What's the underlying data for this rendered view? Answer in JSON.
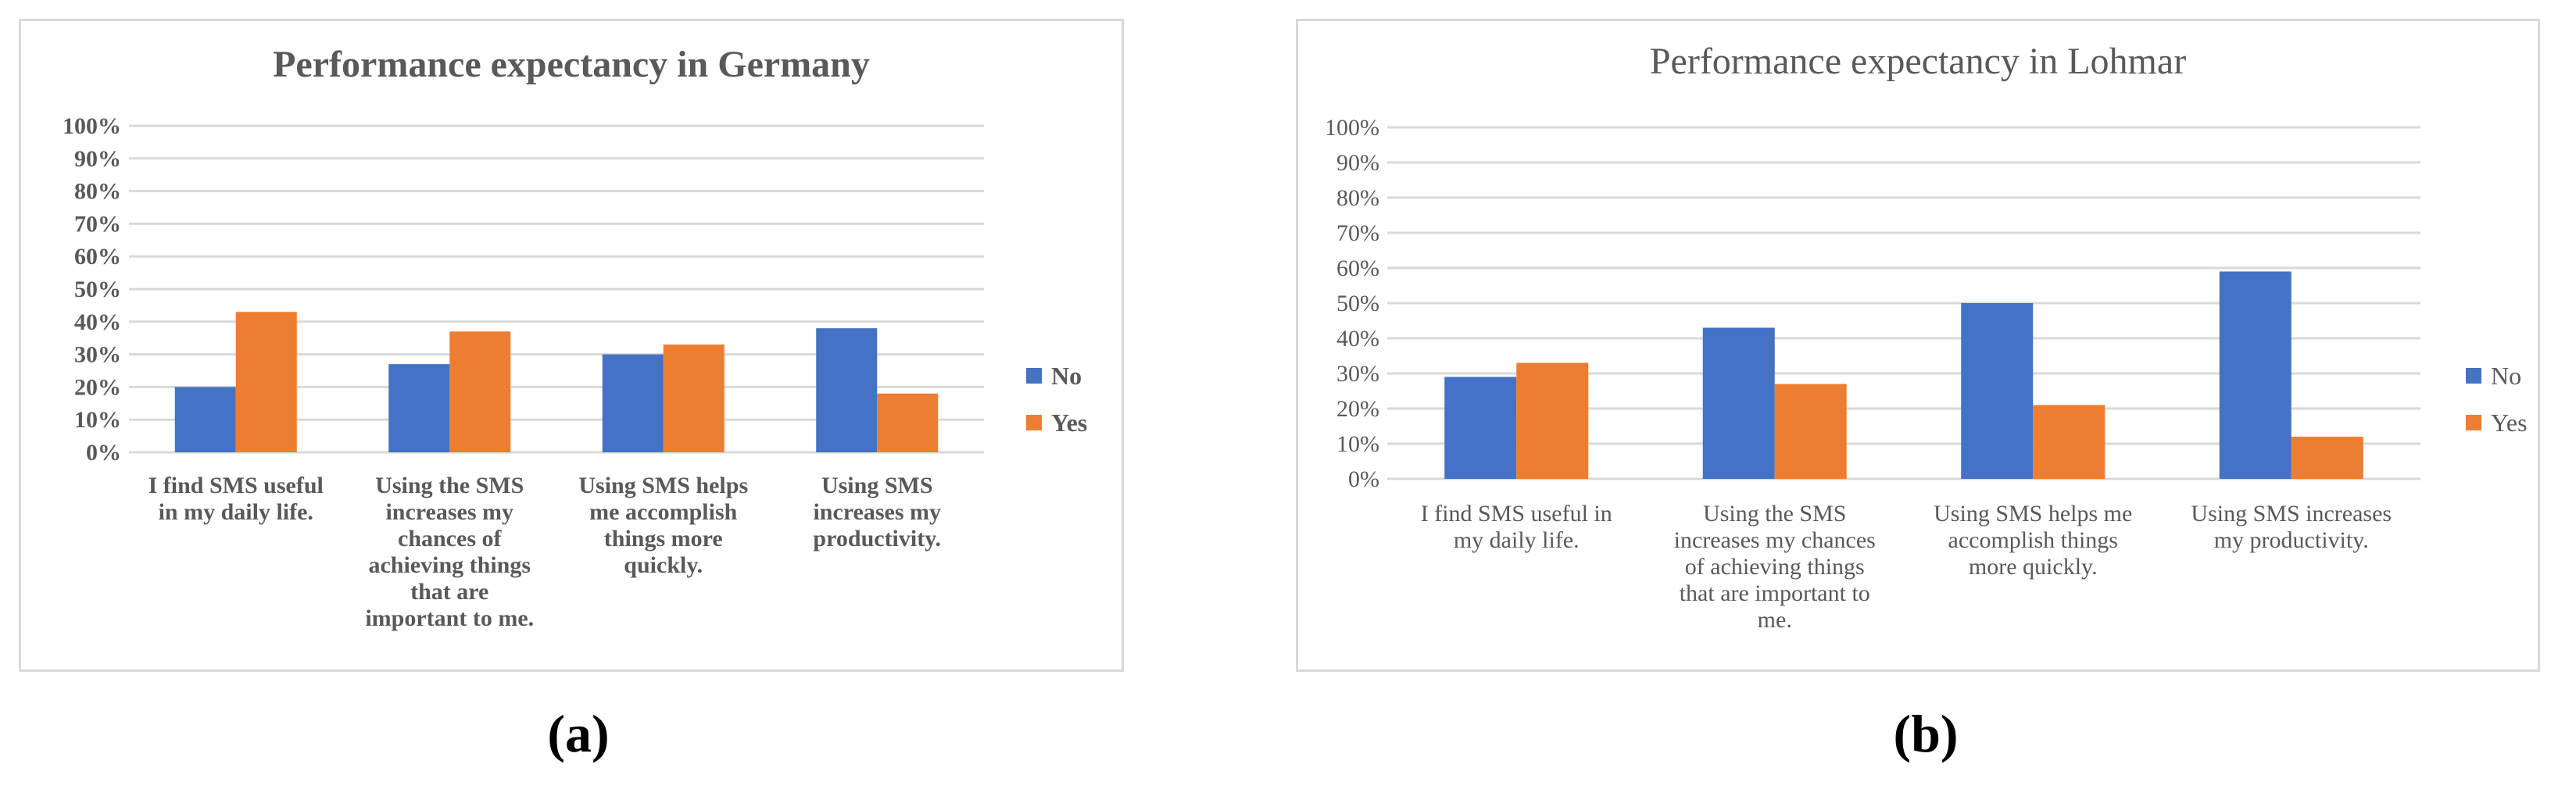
{
  "chart_data": [
    {
      "type": "bar",
      "title": "Performance expectancy in Germany",
      "categories": [
        "I find SMS useful in my daily life.",
        "Using the SMS increases my chances of achieving things that are important to me.",
        "Using SMS helps me accomplish things more quickly.",
        "Using SMS increases my productivity."
      ],
      "category_lines": [
        [
          "I find SMS useful",
          "in my daily life."
        ],
        [
          "Using the SMS",
          "increases my",
          "chances of",
          "achieving things",
          "that are",
          "important to me."
        ],
        [
          "Using SMS helps",
          "me accomplish",
          "things more",
          "quickly."
        ],
        [
          "Using SMS",
          "increases my",
          "productivity."
        ]
      ],
      "series": [
        {
          "name": "No",
          "color": "#4472c4",
          "values": [
            20,
            27,
            30,
            38
          ]
        },
        {
          "name": "Yes",
          "color": "#ed7d31",
          "values": [
            43,
            37,
            33,
            18
          ]
        }
      ],
      "yticks": [
        "0%",
        "10%",
        "20%",
        "30%",
        "40%",
        "50%",
        "60%",
        "70%",
        "80%",
        "90%",
        "100%"
      ],
      "ylim": [
        0,
        100
      ],
      "legend": "right",
      "grid": true
    },
    {
      "type": "bar",
      "title": "Performance expectancy in Lohmar",
      "categories": [
        "I find SMS useful in my daily life.",
        "Using the SMS increases my chances of achieving things that are important to me.",
        "Using SMS helps me accomplish things more quickly.",
        "Using SMS increases my productivity."
      ],
      "category_lines": [
        [
          "I find SMS useful in",
          "my daily life."
        ],
        [
          "Using the SMS",
          "increases my chances",
          "of achieving things",
          "that are important to",
          "me."
        ],
        [
          "Using SMS helps me",
          "accomplish things",
          "more quickly."
        ],
        [
          "Using SMS increases",
          "my productivity."
        ]
      ],
      "series": [
        {
          "name": "No",
          "color": "#4472c4",
          "values": [
            29,
            43,
            50,
            59
          ]
        },
        {
          "name": "Yes",
          "color": "#ed7d31",
          "values": [
            33,
            27,
            21,
            12
          ]
        }
      ],
      "yticks": [
        "0%",
        "10%",
        "20%",
        "30%",
        "40%",
        "50%",
        "60%",
        "70%",
        "80%",
        "90%",
        "100%"
      ],
      "ylim": [
        0,
        100
      ],
      "legend": "right",
      "grid": true
    }
  ],
  "captions": [
    "(a)",
    "(b)"
  ]
}
